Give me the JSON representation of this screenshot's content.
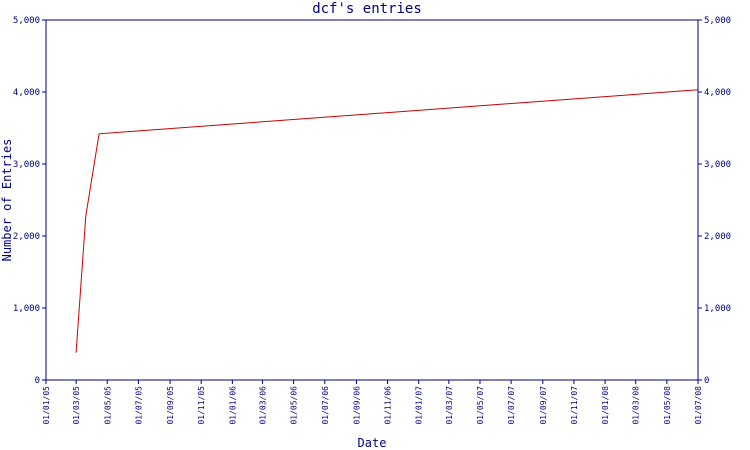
{
  "chart_data": {
    "type": "line",
    "title": "dcf's entries",
    "xlabel": "Date",
    "ylabel": "Number of Entries",
    "ylim": [
      0,
      5000
    ],
    "y_ticks": [
      0,
      1000,
      2000,
      3000,
      4000,
      5000
    ],
    "y_tick_labels": [
      "0",
      "1,000",
      "2,000",
      "3,000",
      "4,000",
      "5,000"
    ],
    "x_tick_labels": [
      "01/01/05",
      "01/03/05",
      "01/05/05",
      "01/07/05",
      "01/09/05",
      "01/11/05",
      "01/01/06",
      "01/03/06",
      "01/05/06",
      "01/07/06",
      "01/09/06",
      "01/11/06",
      "01/01/07",
      "01/03/07",
      "01/05/07",
      "01/07/07",
      "01/09/07",
      "01/11/07",
      "01/01/08",
      "01/03/08",
      "01/05/08",
      "01/07/08"
    ],
    "grid": false,
    "legend": "none",
    "series": [
      {
        "color": "#cc0000",
        "x": [
          "2005-03-01",
          "2005-03-20",
          "2005-04-15",
          "2008-07-01"
        ],
        "y": [
          380,
          2280,
          3420,
          4030
        ]
      }
    ],
    "colors": {
      "axis": "#000080",
      "text": "#000080",
      "line": "#cc0000",
      "background": "#ffffff"
    }
  }
}
